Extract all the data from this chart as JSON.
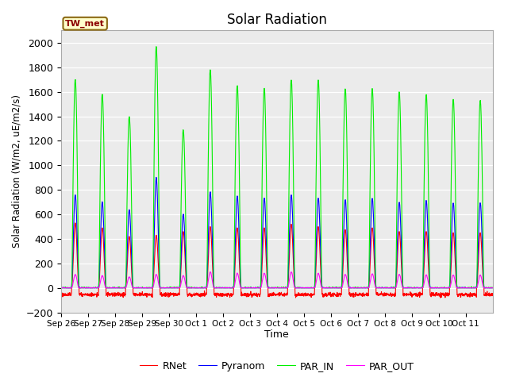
{
  "title": "Solar Radiation",
  "ylabel": "Solar Radiation (W/m2, uE/m2/s)",
  "xlabel": "Time",
  "site_label": "TW_met",
  "ylim": [
    -200,
    2100
  ],
  "yticks": [
    -200,
    0,
    200,
    400,
    600,
    800,
    1000,
    1200,
    1400,
    1600,
    1800,
    2000
  ],
  "colors": {
    "RNet": "#ff0000",
    "Pyranom": "#0000ff",
    "PAR_IN": "#00ee00",
    "PAR_OUT": "#ff00ff"
  },
  "bg_color": "#ebebeb",
  "n_days": 16,
  "peaks": {
    "PAR_IN": [
      1700,
      1580,
      1400,
      1970,
      1290,
      1780,
      1650,
      1630,
      1700,
      1700,
      1625,
      1630,
      1600,
      1575,
      1540,
      1530
    ],
    "Pyranom": [
      760,
      700,
      640,
      900,
      600,
      780,
      750,
      735,
      760,
      735,
      720,
      730,
      700,
      710,
      695,
      695
    ],
    "RNet": [
      530,
      490,
      420,
      430,
      460,
      500,
      490,
      490,
      520,
      500,
      475,
      490,
      460,
      460,
      450,
      450
    ],
    "PAR_OUT": [
      110,
      100,
      90,
      110,
      100,
      130,
      120,
      120,
      130,
      120,
      110,
      115,
      110,
      105,
      105,
      105
    ]
  },
  "neg_rnet": -70,
  "tick_labels": [
    "Sep 26",
    "Sep 27",
    "Sep 28",
    "Sep 29",
    "Sep 30",
    "Oct 1",
    "Oct 2",
    "Oct 3",
    "Oct 4",
    "Oct 5",
    "Oct 6",
    "Oct 7",
    "Oct 8",
    "Oct 9",
    "Oct 10",
    "Oct 11"
  ]
}
